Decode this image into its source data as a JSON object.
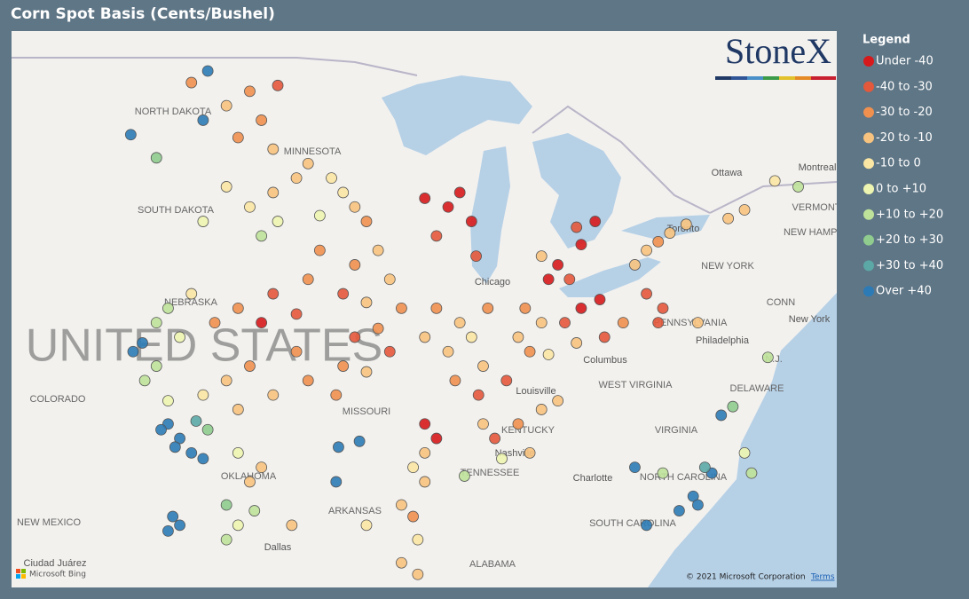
{
  "title": "Corn Spot Basis (Cents/Bushel)",
  "map": {
    "logo": "StoneX",
    "labels": [
      "NORTH DAKOTA",
      "MINNESOTA",
      "SOUTH DAKOTA",
      "NEBRASKA",
      "UNITED STATES",
      "COLORADO",
      "MISSOURI",
      "KENTUCKY",
      "TENNESSEE",
      "OKLAHOMA",
      "ARKANSAS",
      "NEW MEXICO",
      "ALABAMA",
      "WEST VIRGINIA",
      "VIRGINIA",
      "NORTH CAROLINA",
      "SOUTH CAROLINA",
      "PENNSYLVANIA",
      "NEW YORK",
      "VERMONT",
      "NEW HAMPSHIRE",
      "DELAWARE",
      "N.J.",
      "CONN"
    ],
    "cities": [
      "Ottawa",
      "Montreal",
      "Toronto",
      "Chicago",
      "Columbus",
      "Louisville",
      "Nashville",
      "Charlotte",
      "Dallas",
      "Philadelphia",
      "New York",
      "Ciudad Juárez"
    ],
    "copyright": "© 2021 Microsoft Corporation",
    "terms": "Terms",
    "provider": "Microsoft Bing"
  },
  "legend": {
    "title": "Legend",
    "items": [
      {
        "label": "Under -40",
        "color": "#d7191c"
      },
      {
        "label": "-40 to -30",
        "color": "#e4583b"
      },
      {
        "label": "-30 to -20",
        "color": "#f0904f"
      },
      {
        "label": "-20 to -10",
        "color": "#f8c37f"
      },
      {
        "label": "-10 to 0",
        "color": "#fbe6a3"
      },
      {
        "label": "0 to +10",
        "color": "#eef5b0"
      },
      {
        "label": "+10 to +20",
        "color": "#bfe29a"
      },
      {
        "label": "+20 to +30",
        "color": "#8fcc8e"
      },
      {
        "label": "+30 to +40",
        "color": "#5ba8a6"
      },
      {
        "label": "Over +40",
        "color": "#2c7bb6"
      }
    ]
  },
  "points": [
    [
      -98,
      48.5,
      2
    ],
    [
      -97.5,
      47.5,
      2
    ],
    [
      -99,
      48,
      3
    ],
    [
      -100.5,
      48.8,
      2
    ],
    [
      -97,
      46.5,
      3
    ],
    [
      -96.8,
      48.7,
      1
    ],
    [
      -98.5,
      46.9,
      2
    ],
    [
      -99.8,
      49.2,
      9
    ],
    [
      -100,
      47.5,
      9
    ],
    [
      -103.1,
      47.0,
      9
    ],
    [
      -102,
      46.2,
      7
    ],
    [
      -97,
      45,
      3
    ],
    [
      -98,
      44.5,
      4
    ],
    [
      -100,
      44,
      5
    ],
    [
      -97.5,
      43.5,
      6
    ],
    [
      -96.8,
      44,
      5
    ],
    [
      -99,
      45.2,
      4
    ],
    [
      -95.5,
      46,
      3
    ],
    [
      -94.5,
      45.5,
      4
    ],
    [
      -93.5,
      44.5,
      3
    ],
    [
      -95,
      44.2,
      5
    ],
    [
      -94,
      45,
      4
    ],
    [
      -96,
      45.5,
      3
    ],
    [
      -93,
      44,
      2
    ],
    [
      -90.5,
      44.8,
      0
    ],
    [
      -89.5,
      44.5,
      0
    ],
    [
      -88.5,
      44,
      0
    ],
    [
      -90,
      43.5,
      1
    ],
    [
      -89,
      45,
      0
    ],
    [
      -88.3,
      42.8,
      1
    ],
    [
      -95,
      43,
      2
    ],
    [
      -93.5,
      42.5,
      2
    ],
    [
      -92,
      42,
      3
    ],
    [
      -94,
      41.5,
      1
    ],
    [
      -95.5,
      42,
      2
    ],
    [
      -92.5,
      43,
      3
    ],
    [
      -91.5,
      41,
      2
    ],
    [
      -93,
      41.2,
      3
    ],
    [
      -97,
      41.5,
      1
    ],
    [
      -98.5,
      41,
      2
    ],
    [
      -96,
      40.8,
      1
    ],
    [
      -99.5,
      40.5,
      2
    ],
    [
      -97.5,
      40.5,
      0
    ],
    [
      -100.5,
      41.5,
      4
    ],
    [
      -101.5,
      41,
      6
    ],
    [
      -102,
      40.5,
      6
    ],
    [
      -101,
      40,
      5
    ],
    [
      -98,
      39,
      2
    ],
    [
      -99,
      38.5,
      3
    ],
    [
      -97,
      38,
      3
    ],
    [
      -100,
      38,
      4
    ],
    [
      -98.5,
      37.5,
      3
    ],
    [
      -96,
      39.5,
      2
    ],
    [
      -95.5,
      38.5,
      2
    ],
    [
      -102.5,
      38.5,
      6
    ],
    [
      -102,
      39,
      6
    ],
    [
      -101.5,
      37.8,
      5
    ],
    [
      -102.6,
      39.8,
      9
    ],
    [
      -103,
      39.5,
      9
    ],
    [
      -101.5,
      37,
      9
    ],
    [
      -101,
      36.5,
      9
    ],
    [
      -100.5,
      36,
      9
    ],
    [
      -101.8,
      36.8,
      9
    ],
    [
      -101.2,
      36.2,
      9
    ],
    [
      -100.3,
      37.1,
      8
    ],
    [
      -99.8,
      36.8,
      7
    ],
    [
      -100,
      35.8,
      9
    ],
    [
      -99,
      34.2,
      7
    ],
    [
      -98,
      35,
      3
    ],
    [
      -97.5,
      35.5,
      3
    ],
    [
      -98.5,
      36,
      5
    ],
    [
      -101.3,
      33.8,
      9
    ],
    [
      -101,
      33.5,
      9
    ],
    [
      -101.5,
      33.3,
      9
    ],
    [
      -94,
      39,
      2
    ],
    [
      -93,
      38.8,
      3
    ],
    [
      -92,
      39.5,
      1
    ],
    [
      -94.3,
      38,
      2
    ],
    [
      -93.5,
      40,
      1
    ],
    [
      -92.5,
      40.3,
      2
    ],
    [
      -90.5,
      37,
      0
    ],
    [
      -90,
      36.5,
      0
    ],
    [
      -90.5,
      36,
      3
    ],
    [
      -94.2,
      36.2,
      9
    ],
    [
      -93.3,
      36.4,
      9
    ],
    [
      -94.3,
      35,
      9
    ],
    [
      -89,
      40.5,
      3
    ],
    [
      -88.5,
      40,
      4
    ],
    [
      -89.5,
      39.5,
      3
    ],
    [
      -88,
      39,
      3
    ],
    [
      -90,
      41,
      2
    ],
    [
      -89.2,
      38.5,
      2
    ],
    [
      -88.2,
      38,
      1
    ],
    [
      -87.8,
      41,
      2
    ],
    [
      -90.5,
      40,
      3
    ],
    [
      -86.5,
      40,
      3
    ],
    [
      -86,
      39.5,
      2
    ],
    [
      -87,
      38.5,
      1
    ],
    [
      -85.5,
      40.5,
      3
    ],
    [
      -86.2,
      41,
      2
    ],
    [
      -85.2,
      39.4,
      4
    ],
    [
      -84.5,
      40.5,
      1
    ],
    [
      -83.8,
      41,
      0
    ],
    [
      -84,
      39.8,
      3
    ],
    [
      -82.8,
      40,
      1
    ],
    [
      -83,
      41.3,
      0
    ],
    [
      -82,
      40.5,
      2
    ],
    [
      -84.8,
      42.5,
      0
    ],
    [
      -83.8,
      43.2,
      0
    ],
    [
      -84.3,
      42,
      1
    ],
    [
      -85.5,
      42.8,
      3
    ],
    [
      -85.2,
      42,
      0
    ],
    [
      -83.2,
      44,
      0
    ],
    [
      -84,
      43.8,
      1
    ],
    [
      -81.5,
      42.5,
      3
    ],
    [
      -80.5,
      43.3,
      2
    ],
    [
      -80,
      43.6,
      3
    ],
    [
      -81,
      43,
      3
    ],
    [
      -79.3,
      43.9,
      3
    ],
    [
      -76.8,
      44.4,
      3
    ],
    [
      -77.5,
      44.1,
      3
    ],
    [
      -75.5,
      45.4,
      4
    ],
    [
      -74.5,
      45.2,
      6
    ],
    [
      -86.5,
      37,
      2
    ],
    [
      -88,
      37,
      3
    ],
    [
      -87.5,
      36.5,
      1
    ],
    [
      -86,
      36,
      3
    ],
    [
      -87.2,
      35.8,
      5
    ],
    [
      -88.8,
      35.2,
      6
    ],
    [
      -85.5,
      37.5,
      3
    ],
    [
      -84.8,
      37.8,
      3
    ],
    [
      -91,
      35.5,
      4
    ],
    [
      -90.5,
      35,
      3
    ],
    [
      -91.5,
      34.2,
      3
    ],
    [
      -90.8,
      33,
      4
    ],
    [
      -91,
      33.8,
      2
    ],
    [
      -77.8,
      37.3,
      9
    ],
    [
      -77.3,
      37.6,
      7
    ],
    [
      -81.5,
      35.5,
      9
    ],
    [
      -80.3,
      35.3,
      6
    ],
    [
      -79,
      34.5,
      9
    ],
    [
      -78.2,
      35.3,
      9
    ],
    [
      -78.8,
      34.2,
      9
    ],
    [
      -79.6,
      34.0,
      9
    ],
    [
      -81,
      33.5,
      9
    ],
    [
      -76.8,
      36,
      5
    ],
    [
      -76.5,
      35.3,
      6
    ],
    [
      -78.5,
      35.5,
      8
    ],
    [
      -75.8,
      39.3,
      6
    ],
    [
      -97.8,
      34,
      6
    ],
    [
      -98.5,
      33.5,
      5
    ],
    [
      -99,
      33,
      6
    ],
    [
      -96.2,
      33.5,
      3
    ],
    [
      -93,
      33.5,
      4
    ],
    [
      -91.5,
      32.2,
      3
    ],
    [
      -90.8,
      31.8,
      3
    ],
    [
      -80.5,
      40.5,
      1
    ],
    [
      -80.3,
      41,
      1
    ],
    [
      -81,
      41.5,
      1
    ],
    [
      -78.8,
      40.5,
      3
    ]
  ]
}
